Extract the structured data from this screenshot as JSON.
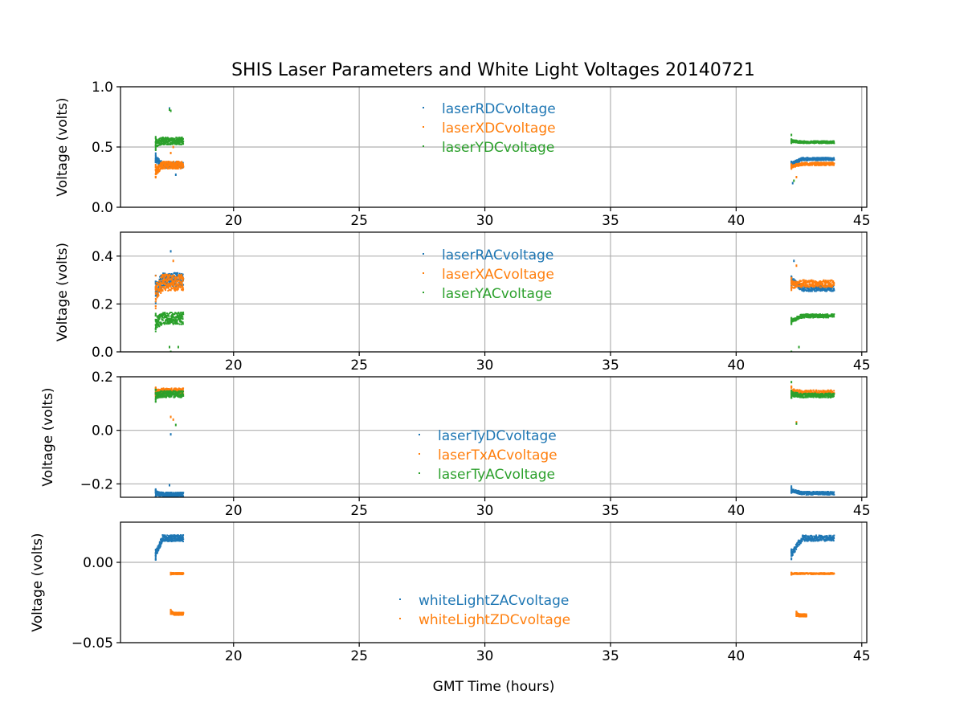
{
  "title": "SHIS Laser Parameters and White Light Voltages 20140721",
  "colors": {
    "blue": "#1f77b4",
    "orange": "#ff7f0e",
    "green": "#2ca02c",
    "grid": "#b0b0b0",
    "axis": "#000000"
  },
  "chart_data": [
    {
      "type": "scatter",
      "ylabel": "Voltage (volts)",
      "xlim": [
        15.5,
        45.2
      ],
      "ylim": [
        0.0,
        1.0
      ],
      "xticks": [
        {
          "value": 20,
          "label": "20"
        },
        {
          "value": 25,
          "label": "25"
        },
        {
          "value": 30,
          "label": "30"
        },
        {
          "value": 35,
          "label": "35"
        },
        {
          "value": 40,
          "label": "40"
        },
        {
          "value": 45,
          "label": "45"
        }
      ],
      "yticks": [
        {
          "value": 0.0,
          "label": "0.0"
        },
        {
          "value": 0.5,
          "label": "0.5"
        },
        {
          "value": 1.0,
          "label": "1.0"
        }
      ],
      "grid": true,
      "legend_position": "upper-center",
      "series": [
        {
          "name": "laserRDCvoltage",
          "color": "#1f77b4",
          "segments": [
            {
              "x_range": [
                16.9,
                18.0
              ],
              "level": 0.35,
              "start_level": 0.4,
              "spread": 0.025
            },
            {
              "x_range": [
                42.2,
                43.9
              ],
              "level": 0.4,
              "start_level": 0.36,
              "spread": 0.012
            }
          ],
          "outliers": [
            {
              "x": 17.45,
              "y": 0.82
            },
            {
              "x": 17.7,
              "y": 0.27
            },
            {
              "x": 42.25,
              "y": 0.2
            }
          ]
        },
        {
          "name": "laserXDCvoltage",
          "color": "#ff7f0e",
          "segments": [
            {
              "x_range": [
                16.9,
                18.0
              ],
              "level": 0.35,
              "start_level": 0.3,
              "spread": 0.03
            },
            {
              "x_range": [
                42.2,
                43.9
              ],
              "level": 0.36,
              "start_level": 0.34,
              "spread": 0.012
            }
          ],
          "outliers": [
            {
              "x": 17.5,
              "y": 0.45
            },
            {
              "x": 17.6,
              "y": 0.5
            },
            {
              "x": 42.4,
              "y": 0.25
            }
          ]
        },
        {
          "name": "laserYDCvoltage",
          "color": "#2ca02c",
          "segments": [
            {
              "x_range": [
                16.9,
                18.0
              ],
              "level": 0.55,
              "start_level": 0.53,
              "spread": 0.03
            },
            {
              "x_range": [
                42.2,
                43.9
              ],
              "level": 0.54,
              "start_level": 0.55,
              "spread": 0.01
            }
          ],
          "outliers": [
            {
              "x": 17.45,
              "y": 0.81
            },
            {
              "x": 17.5,
              "y": 0.8
            },
            {
              "x": 42.2,
              "y": 0.6
            },
            {
              "x": 42.3,
              "y": 0.22
            }
          ]
        }
      ]
    },
    {
      "type": "scatter",
      "ylabel": "Voltage (volts)",
      "xlim": [
        15.5,
        45.2
      ],
      "ylim": [
        0.0,
        0.5
      ],
      "xticks": [
        {
          "value": 20,
          "label": "20"
        },
        {
          "value": 25,
          "label": "25"
        },
        {
          "value": 30,
          "label": "30"
        },
        {
          "value": 35,
          "label": "35"
        },
        {
          "value": 40,
          "label": "40"
        },
        {
          "value": 45,
          "label": "45"
        }
      ],
      "yticks": [
        {
          "value": 0.0,
          "label": "0.0"
        },
        {
          "value": 0.2,
          "label": "0.2"
        },
        {
          "value": 0.4,
          "label": "0.4"
        }
      ],
      "grid": true,
      "legend_position": "upper-center",
      "series": [
        {
          "name": "laserRACvoltage",
          "color": "#1f77b4",
          "segments": [
            {
              "x_range": [
                16.9,
                18.0
              ],
              "level": 0.3,
              "start_level": 0.26,
              "spread": 0.03
            },
            {
              "x_range": [
                42.2,
                43.9
              ],
              "level": 0.265,
              "start_level": 0.3,
              "spread": 0.012
            }
          ],
          "outliers": [
            {
              "x": 17.5,
              "y": 0.42
            },
            {
              "x": 42.3,
              "y": 0.38
            }
          ]
        },
        {
          "name": "laserXACvoltage",
          "color": "#ff7f0e",
          "segments": [
            {
              "x_range": [
                16.9,
                18.0
              ],
              "level": 0.29,
              "start_level": 0.25,
              "spread": 0.035
            },
            {
              "x_range": [
                42.2,
                43.9
              ],
              "level": 0.285,
              "start_level": 0.28,
              "spread": 0.015
            }
          ],
          "outliers": [
            {
              "x": 17.6,
              "y": 0.38
            },
            {
              "x": 42.4,
              "y": 0.36
            }
          ]
        },
        {
          "name": "laserYACvoltage",
          "color": "#2ca02c",
          "segments": [
            {
              "x_range": [
                16.9,
                18.0
              ],
              "level": 0.14,
              "start_level": 0.12,
              "spread": 0.025
            },
            {
              "x_range": [
                42.2,
                43.9
              ],
              "level": 0.15,
              "start_level": 0.13,
              "spread": 0.008
            }
          ],
          "outliers": [
            {
              "x": 17.45,
              "y": 0.02
            },
            {
              "x": 17.5,
              "y": 0.0
            },
            {
              "x": 17.8,
              "y": 0.02
            },
            {
              "x": 42.2,
              "y": 0.0
            },
            {
              "x": 42.5,
              "y": 0.02
            }
          ]
        }
      ]
    },
    {
      "type": "scatter",
      "ylabel": "Voltage (volts)",
      "xlim": [
        15.5,
        45.2
      ],
      "ylim": [
        -0.25,
        0.2
      ],
      "xticks": [
        {
          "value": 20,
          "label": "20"
        },
        {
          "value": 25,
          "label": "25"
        },
        {
          "value": 30,
          "label": "30"
        },
        {
          "value": 35,
          "label": "35"
        },
        {
          "value": 40,
          "label": "40"
        },
        {
          "value": 45,
          "label": "45"
        }
      ],
      "yticks": [
        {
          "value": -0.2,
          "label": "−0.2"
        },
        {
          "value": 0.0,
          "label": "0.0"
        },
        {
          "value": 0.2,
          "label": "0.2"
        }
      ],
      "grid": true,
      "legend_position": "lower-center",
      "series": [
        {
          "name": "laserTyDCvoltage",
          "color": "#1f77b4",
          "segments": [
            {
              "x_range": [
                16.9,
                18.0
              ],
              "level": -0.24,
              "start_level": -0.235,
              "spread": 0.008
            },
            {
              "x_range": [
                42.2,
                43.9
              ],
              "level": -0.235,
              "start_level": -0.225,
              "spread": 0.006
            }
          ],
          "outliers": [
            {
              "x": 17.5,
              "y": -0.015
            },
            {
              "x": 17.45,
              "y": -0.205
            },
            {
              "x": 42.2,
              "y": -0.21
            }
          ]
        },
        {
          "name": "laserTxACvoltage",
          "color": "#ff7f0e",
          "segments": [
            {
              "x_range": [
                16.9,
                18.0
              ],
              "level": 0.145,
              "start_level": 0.14,
              "spread": 0.012
            },
            {
              "x_range": [
                42.2,
                43.9
              ],
              "level": 0.14,
              "start_level": 0.145,
              "spread": 0.01
            }
          ],
          "outliers": [
            {
              "x": 17.5,
              "y": 0.05
            },
            {
              "x": 17.6,
              "y": 0.04
            },
            {
              "x": 42.4,
              "y": 0.03
            }
          ]
        },
        {
          "name": "laserTyACvoltage",
          "color": "#2ca02c",
          "segments": [
            {
              "x_range": [
                16.9,
                18.0
              ],
              "level": 0.135,
              "start_level": 0.13,
              "spread": 0.012
            },
            {
              "x_range": [
                42.2,
                43.9
              ],
              "level": 0.13,
              "start_level": 0.135,
              "spread": 0.008
            }
          ],
          "outliers": [
            {
              "x": 17.7,
              "y": 0.02
            },
            {
              "x": 42.2,
              "y": 0.18
            },
            {
              "x": 42.4,
              "y": 0.025
            }
          ]
        }
      ]
    },
    {
      "type": "scatter",
      "ylabel": "Voltage (volts)",
      "xlabel": "GMT Time (hours)",
      "xlim": [
        15.5,
        45.2
      ],
      "ylim": [
        -0.05,
        0.025
      ],
      "xticks": [
        {
          "value": 20,
          "label": "20"
        },
        {
          "value": 25,
          "label": "25"
        },
        {
          "value": 30,
          "label": "30"
        },
        {
          "value": 35,
          "label": "35"
        },
        {
          "value": 40,
          "label": "40"
        },
        {
          "value": 45,
          "label": "45"
        }
      ],
      "yticks": [
        {
          "value": -0.05,
          "label": "−0.05"
        },
        {
          "value": 0.0,
          "label": "0.00"
        }
      ],
      "grid": true,
      "legend_position": "lower-center",
      "series": [
        {
          "name": "whiteLightZACvoltage",
          "color": "#1f77b4",
          "segments": [
            {
              "x_range": [
                16.9,
                18.0
              ],
              "level": 0.015,
              "start_level": 0.005,
              "spread": 0.002
            },
            {
              "x_range": [
                42.2,
                43.9
              ],
              "level": 0.015,
              "start_level": 0.005,
              "spread": 0.0018
            }
          ],
          "outliers": []
        },
        {
          "name": "whiteLightZDCvoltage",
          "color": "#ff7f0e",
          "segments": [
            {
              "x_range": [
                17.5,
                18.0
              ],
              "level": -0.007,
              "start_level": -0.007,
              "spread": 0.0004
            },
            {
              "x_range": [
                42.2,
                43.9
              ],
              "level": -0.007,
              "start_level": -0.007,
              "spread": 0.0004
            },
            {
              "x_range": [
                17.5,
                18.0
              ],
              "level": -0.032,
              "start_level": -0.031,
              "spread": 0.0008
            },
            {
              "x_range": [
                42.4,
                42.8
              ],
              "level": -0.033,
              "start_level": -0.032,
              "spread": 0.0008
            }
          ],
          "outliers": []
        }
      ]
    }
  ]
}
